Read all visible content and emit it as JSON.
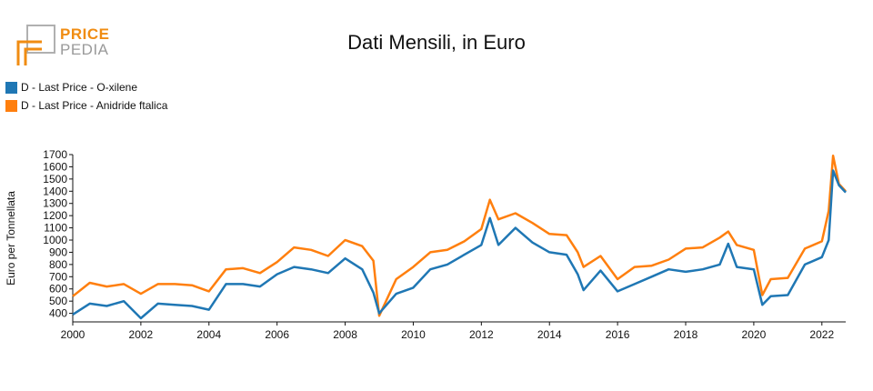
{
  "logo": {
    "line1": "PRICE",
    "line2": "PEDIA",
    "colors": {
      "orange": "#f08c12",
      "gray": "#9a9a9a"
    }
  },
  "chart_data": {
    "type": "line",
    "title": "Dati Mensili, in Euro",
    "xlabel": "",
    "ylabel": "Euro per Tonnellata",
    "xlim": [
      2000,
      2022.7
    ],
    "ylim": [
      330,
      1700
    ],
    "xticks": [
      "2000",
      "2002",
      "2004",
      "2006",
      "2008",
      "2010",
      "2012",
      "2014",
      "2016",
      "2018",
      "2020",
      "2022"
    ],
    "yticks": [
      "400",
      "500",
      "600",
      "700",
      "800",
      "900",
      "1000",
      "1100",
      "1200",
      "1300",
      "1400",
      "1500",
      "1600",
      "1700"
    ],
    "legend_position": "top-left",
    "x": [
      2000.0,
      2000.5,
      2001.0,
      2001.5,
      2002.0,
      2002.5,
      2003.0,
      2003.5,
      2004.0,
      2004.5,
      2005.0,
      2005.5,
      2006.0,
      2006.5,
      2007.0,
      2007.5,
      2008.0,
      2008.5,
      2008.83,
      2009.0,
      2009.5,
      2010.0,
      2010.5,
      2011.0,
      2011.5,
      2012.0,
      2012.25,
      2012.5,
      2013.0,
      2013.5,
      2014.0,
      2014.5,
      2014.83,
      2015.0,
      2015.5,
      2016.0,
      2016.5,
      2017.0,
      2017.5,
      2018.0,
      2018.5,
      2019.0,
      2019.25,
      2019.5,
      2020.0,
      2020.25,
      2020.5,
      2021.0,
      2021.5,
      2022.0,
      2022.2,
      2022.33,
      2022.5,
      2022.7
    ],
    "series": [
      {
        "name": "D - Last Price - O-xilene",
        "color": "#1f77b4",
        "values": [
          390,
          480,
          460,
          500,
          360,
          480,
          470,
          460,
          430,
          640,
          640,
          620,
          720,
          780,
          760,
          730,
          850,
          760,
          570,
          400,
          560,
          610,
          760,
          800,
          880,
          960,
          1180,
          960,
          1100,
          980,
          900,
          880,
          720,
          590,
          750,
          580,
          640,
          700,
          760,
          740,
          760,
          800,
          970,
          780,
          760,
          470,
          540,
          550,
          800,
          860,
          1000,
          1570,
          1450,
          1390
        ]
      },
      {
        "name": "D - Last Price - Anidride ftalica",
        "color": "#ff7f0e",
        "values": [
          540,
          650,
          620,
          640,
          560,
          640,
          640,
          630,
          580,
          760,
          770,
          730,
          820,
          940,
          920,
          870,
          1000,
          950,
          830,
          380,
          680,
          780,
          900,
          920,
          990,
          1090,
          1330,
          1170,
          1220,
          1140,
          1050,
          1040,
          900,
          780,
          870,
          680,
          780,
          790,
          840,
          930,
          940,
          1020,
          1070,
          960,
          920,
          550,
          680,
          690,
          930,
          990,
          1240,
          1690,
          1460,
          1400
        ]
      }
    ]
  }
}
